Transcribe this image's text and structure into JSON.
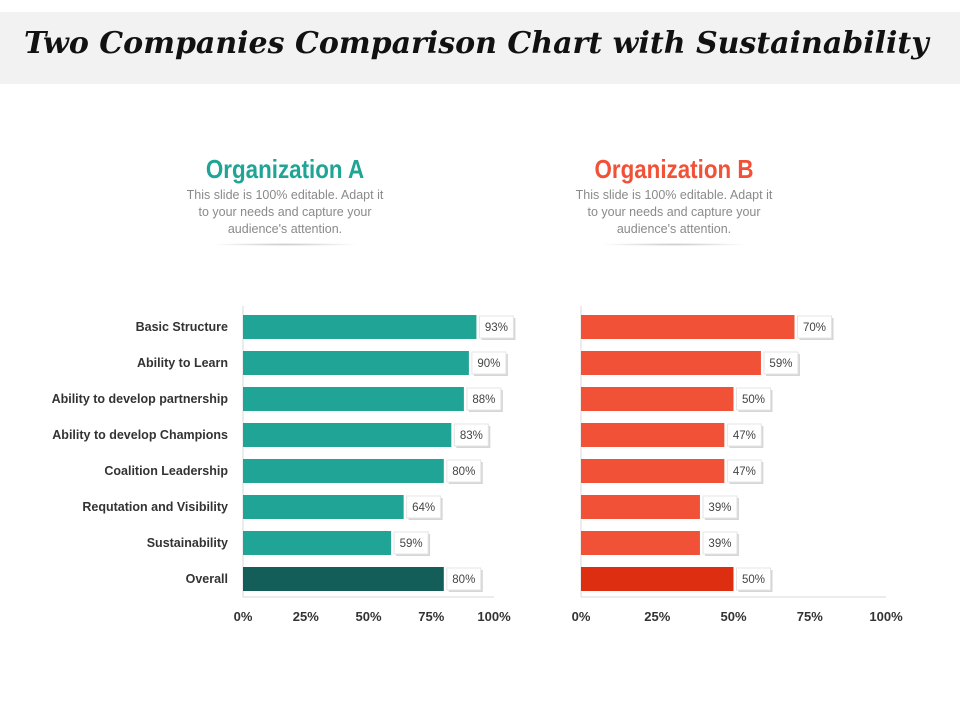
{
  "title": "Two Companies Comparison Chart with Sustainability",
  "colors": {
    "org_a": "#20a496",
    "org_a_overall": "#135e58",
    "org_b": "#f15137",
    "org_b_overall": "#de2e12"
  },
  "organizations": [
    {
      "name": "Organization A",
      "description": "This slide is 100% editable. Adapt it to your needs and capture your audience's attention."
    },
    {
      "name": "Organization B",
      "description": "This slide is 100% editable. Adapt it to your needs and capture your audience's attention."
    }
  ],
  "chart_data": {
    "type": "bar",
    "orientation": "horizontal",
    "categories": [
      "Basic Structure",
      "Ability to Learn",
      "Ability to develop partnership",
      "Ability to develop Champions",
      "Coalition Leadership",
      "Reputation and Visibility",
      "Sustainability",
      "Overall"
    ],
    "category_labels": [
      "Basic Structure",
      "Ability to Learn",
      "Ability to develop partnership",
      "Ability to develop Champions",
      "Coalition Leadership",
      "Requtation and Visibility",
      "Sustainability",
      "Overall"
    ],
    "series": [
      {
        "name": "Organization A",
        "values": [
          93,
          90,
          88,
          83,
          80,
          64,
          59,
          80
        ],
        "labels": [
          "93%",
          "90%",
          "88%",
          "83%",
          "80%",
          "64%",
          "59%",
          "80%"
        ]
      },
      {
        "name": "Organization B",
        "values": [
          70,
          59,
          50,
          47,
          47,
          39,
          39,
          50
        ],
        "labels": [
          "70%",
          "59%",
          "50%",
          "47%",
          "47%",
          "39%",
          "39%",
          "50%"
        ]
      }
    ],
    "xlim": [
      0,
      100
    ],
    "ticks": [
      0,
      25,
      50,
      75,
      100
    ],
    "tick_labels": [
      "0%",
      "25%",
      "50%",
      "75%",
      "100%"
    ],
    "grid": false,
    "legend": "none"
  }
}
